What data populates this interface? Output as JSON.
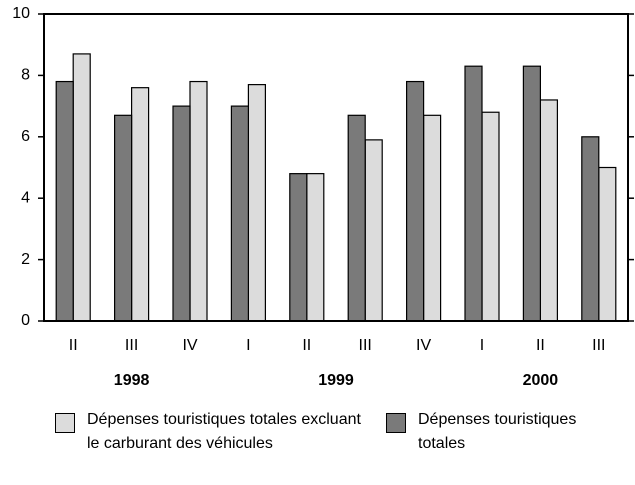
{
  "chart_data": {
    "type": "bar",
    "categories": [
      "II",
      "III",
      "IV",
      "I",
      "II",
      "III",
      "IV",
      "I",
      "II",
      "III"
    ],
    "groups": [
      {
        "label": "1998",
        "size": 3
      },
      {
        "label": "1999",
        "size": 4
      },
      {
        "label": "2000",
        "size": 3
      }
    ],
    "series": [
      {
        "name": "Dépenses touristiques totales excluant le carburant des véhicules",
        "color": "#dcdcdc",
        "values": [
          8.7,
          7.6,
          7.8,
          7.7,
          4.8,
          5.9,
          6.7,
          6.8,
          7.2,
          5.0
        ]
      },
      {
        "name": "Dépenses touristiques totales",
        "color": "#7a7a7a",
        "values": [
          7.8,
          6.7,
          7.0,
          7.0,
          4.8,
          6.7,
          7.8,
          8.3,
          8.3,
          6.0
        ]
      }
    ],
    "ylim": [
      0,
      10
    ],
    "yticks": [
      0,
      2,
      4,
      6,
      8,
      10
    ]
  }
}
